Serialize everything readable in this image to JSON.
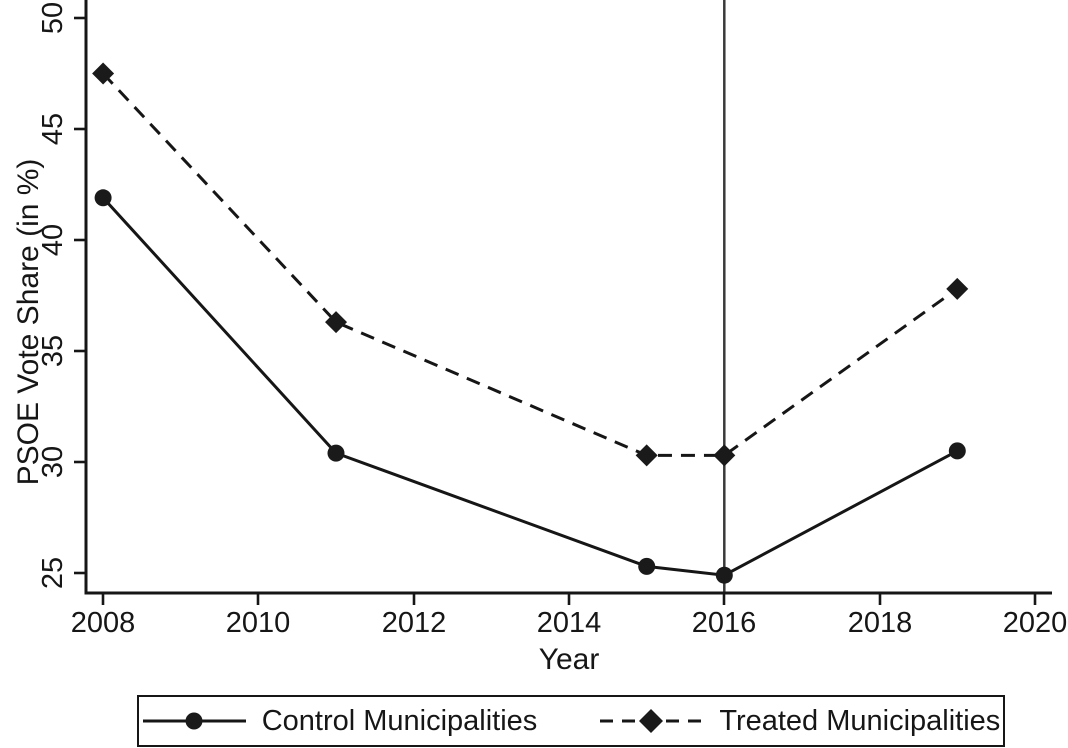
{
  "chart_data": {
    "type": "line",
    "title": "",
    "xlabel": "Year",
    "ylabel": "PSOE Vote Share (in %)",
    "x_ticks": [
      "2008",
      "2010",
      "2012",
      "2014",
      "2016",
      "2018",
      "2020"
    ],
    "y_ticks": [
      "25",
      "30",
      "35",
      "40",
      "45",
      "50"
    ],
    "xlim": [
      2007.78,
      2020.22
    ],
    "ylim": [
      24.1,
      50.81
    ],
    "grid": false,
    "legend_position": "bottom",
    "x": [
      2008,
      2011,
      2015,
      2016,
      2019
    ],
    "series": [
      {
        "name": "Control Municipalities",
        "marker": "circle",
        "line_style": "solid",
        "values": [
          41.9,
          30.4,
          25.3,
          24.9,
          30.5
        ]
      },
      {
        "name": "Treated Municipalities",
        "marker": "diamond",
        "line_style": "dashed",
        "values": [
          47.5,
          36.3,
          30.3,
          30.3,
          37.8
        ]
      }
    ],
    "reference_line": {
      "axis": "x",
      "value": 2016
    },
    "line_color": "#161616",
    "reference_line_color": "#3a3a3a",
    "background_color": "#ffffff"
  }
}
